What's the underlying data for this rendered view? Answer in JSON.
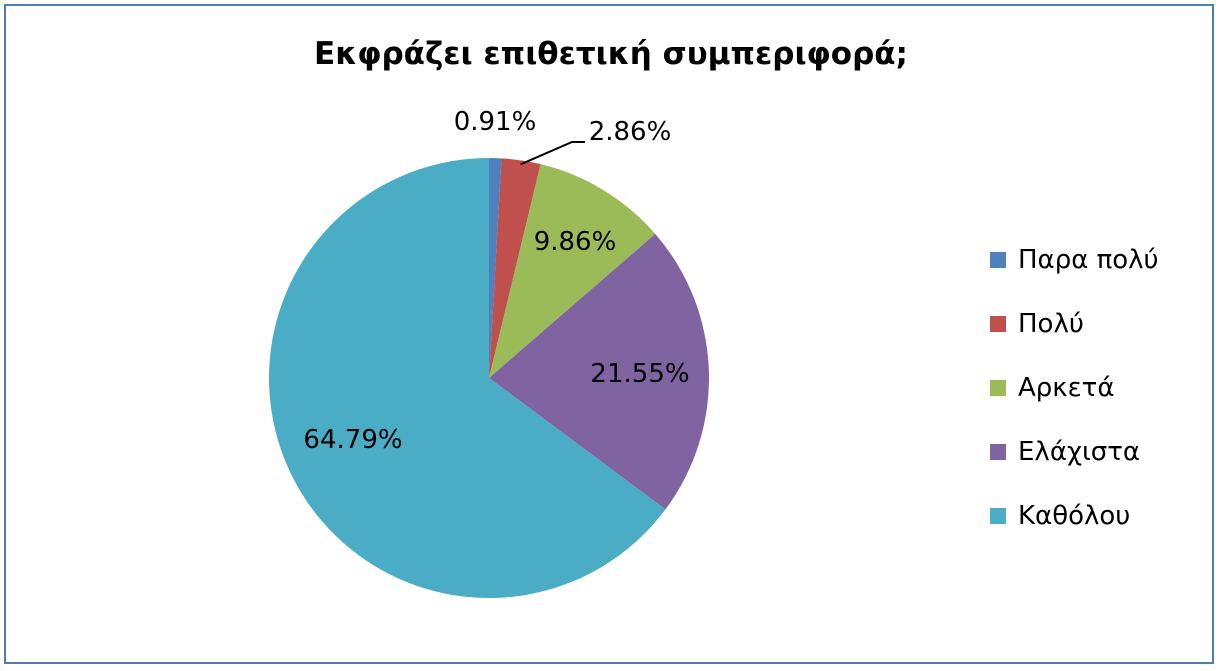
{
  "chart_data": {
    "type": "pie",
    "title": "Εκφράζει επιθετική συμπεριφορά;",
    "slices": [
      {
        "name": "Παρα πολύ",
        "value": 0.91,
        "label": "0.91%",
        "color": "#4f81bd"
      },
      {
        "name": "Πολύ",
        "value": 2.86,
        "label": "2.86%",
        "color": "#c0504d"
      },
      {
        "name": "Αρκετά",
        "value": 9.86,
        "label": "9.86%",
        "color": "#9bbb59"
      },
      {
        "name": "Ελάχιστα",
        "value": 21.55,
        "label": "21.55%",
        "color": "#8064a2"
      },
      {
        "name": "Καθόλου",
        "value": 64.79,
        "label": "64.79%",
        "color": "#4bacc6"
      }
    ],
    "legend_position": "right"
  }
}
